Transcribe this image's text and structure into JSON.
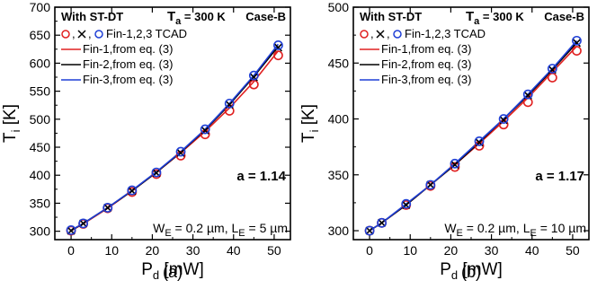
{
  "chart_data": [
    {
      "type": "line",
      "panel_label": "(a)",
      "header": {
        "left": "With ST-DT",
        "temp_prefix": "T",
        "temp_sub": "a",
        "temp_suffix": " = 300 K",
        "case": "Case-B"
      },
      "xlabel": {
        "main": "P",
        "sub": "d",
        "unit": " [mW]"
      },
      "ylabel": {
        "main": "T",
        "sub": "i",
        "unit": " [K]"
      },
      "xlim": [
        -4,
        54
      ],
      "ylim": [
        285,
        700
      ],
      "xticks": [
        0,
        10,
        20,
        30,
        40,
        50
      ],
      "yticks": [
        300,
        350,
        400,
        450,
        500,
        550,
        600,
        650,
        700
      ],
      "legend": {
        "tcad_label": "Fin-1,2,3 TCAD",
        "lines": [
          "Fin-1,from eq. (3)",
          "Fin-2,from eq. (3)",
          "Fin-3,from eq. (3)"
        ]
      },
      "annotation_a": "a = 1.14",
      "geometry": {
        "w": "W",
        "w_sub": "E",
        "w_val": " = 0.2 µm, ",
        "l": "L",
        "l_sub": "E",
        "l_val": " = 5 µm"
      },
      "x": [
        0,
        3,
        9,
        15,
        21,
        27,
        33,
        39,
        45,
        51
      ],
      "series": [
        {
          "name": "Fin-1",
          "color": "#e02020",
          "marker": "circle",
          "tcad": [
            301,
            313,
            341,
            370,
            402,
            435,
            473,
            515,
            562,
            614
          ],
          "model": [
            301,
            313,
            341,
            372,
            405,
            440,
            478,
            520,
            567,
            622
          ]
        },
        {
          "name": "Fin-2",
          "color": "#000000",
          "marker": "cross",
          "tcad": [
            301,
            314,
            342,
            372,
            404,
            440,
            480,
            526,
            575,
            628
          ],
          "model": [
            301,
            314,
            342,
            372,
            405,
            441,
            481,
            526,
            576,
            630
          ]
        },
        {
          "name": "Fin-3",
          "color": "#1f3fd6",
          "marker": "circle",
          "tcad": [
            302,
            314,
            342,
            373,
            405,
            442,
            482,
            528,
            578,
            632
          ],
          "model": [
            302,
            314,
            342,
            373,
            406,
            442,
            482,
            528,
            578,
            634
          ]
        }
      ]
    },
    {
      "type": "line",
      "panel_label": "(b)",
      "header": {
        "left": "With ST-DT",
        "temp_prefix": "T",
        "temp_sub": "a",
        "temp_suffix": " = 300 K",
        "case": "Case-B"
      },
      "xlabel": {
        "main": "P",
        "sub": "d",
        "unit": " [mW]"
      },
      "ylabel": {
        "main": "T",
        "sub": "i",
        "unit": " [K]"
      },
      "xlim": [
        -4,
        54
      ],
      "ylim": [
        292,
        500
      ],
      "xticks": [
        0,
        10,
        20,
        30,
        40,
        50
      ],
      "yticks": [
        300,
        350,
        400,
        450,
        500
      ],
      "legend": {
        "tcad_label": "Fin-1,2,3 TCAD",
        "lines": [
          "Fin-1,from eq. (3)",
          "Fin-2,from eq. (3)",
          "Fin-3,from eq. (3)"
        ]
      },
      "annotation_a": "a = 1.17",
      "geometry": {
        "w": "W",
        "w_sub": "E",
        "w_val": " = 0.2 µm, ",
        "l": "L",
        "l_sub": "E",
        "l_val": " = 10 µm"
      },
      "x": [
        0,
        3,
        9,
        15,
        21,
        27,
        33,
        39,
        45,
        51
      ],
      "series": [
        {
          "name": "Fin-1",
          "color": "#e02020",
          "marker": "circle",
          "tcad": [
            300,
            307,
            323,
            340,
            357,
            376,
            395,
            415,
            437,
            461
          ],
          "model": [
            300,
            307,
            323,
            341,
            359,
            378,
            398,
            419,
            442,
            465
          ]
        },
        {
          "name": "Fin-2",
          "color": "#000000",
          "marker": "cross",
          "tcad": [
            300,
            307,
            323,
            341,
            359,
            379,
            399,
            421,
            444,
            468
          ],
          "model": [
            300,
            307,
            323,
            341,
            359,
            379,
            400,
            421,
            444,
            468
          ]
        },
        {
          "name": "Fin-3",
          "color": "#1f3fd6",
          "marker": "circle",
          "tcad": [
            300,
            307,
            324,
            341,
            360,
            380,
            400,
            422,
            445,
            470
          ],
          "model": [
            300,
            307,
            324,
            341,
            360,
            380,
            400,
            422,
            445,
            470
          ]
        }
      ]
    }
  ]
}
